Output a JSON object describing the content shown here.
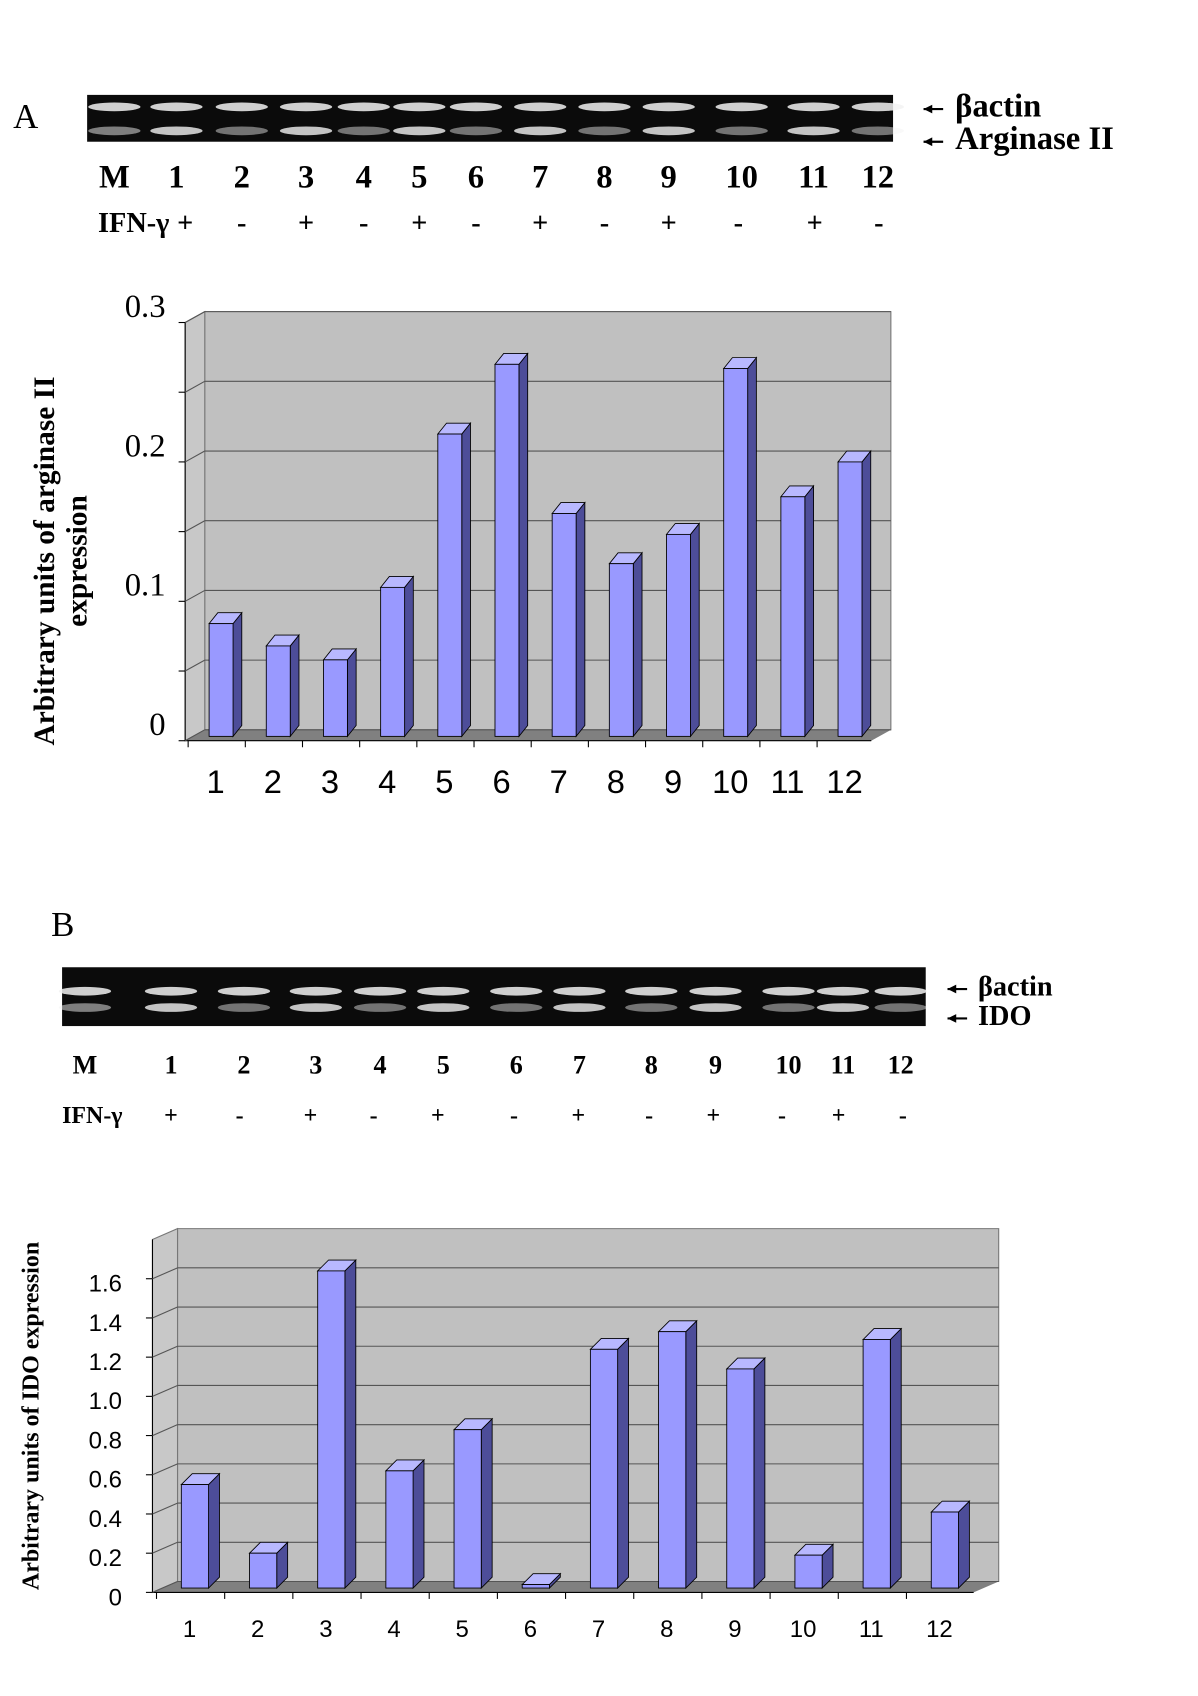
{
  "chart_data": [
    {
      "type": "bar3d",
      "panel": "A",
      "gel": {
        "lanes": [
          "M",
          "1",
          "2",
          "3",
          "4",
          "5",
          "6",
          "7",
          "8",
          "9",
          "10",
          "11",
          "12"
        ],
        "treatment_label": "IFN-γ",
        "treatment": [
          "+",
          "-",
          "+",
          "-",
          "+",
          "-",
          "+",
          "-",
          "+",
          "-",
          "+",
          "-"
        ],
        "bands": [
          "βactin",
          "Arginase II"
        ]
      },
      "ylabel": [
        "Arbitrary units of arginase II",
        "expression"
      ],
      "categories": [
        "1",
        "2",
        "3",
        "4",
        "5",
        "6",
        "7",
        "8",
        "9",
        "10",
        "11",
        "12"
      ],
      "values": [
        0.084,
        0.068,
        0.058,
        0.11,
        0.22,
        0.27,
        0.163,
        0.127,
        0.148,
        0.267,
        0.175,
        0.2
      ],
      "color": "#9999ff",
      "ylim": [
        0,
        0.3
      ],
      "yticks": [
        0,
        0.1,
        0.2,
        0.3
      ],
      "minor_yticks": [
        0.05,
        0.15,
        0.25
      ],
      "grid": true
    },
    {
      "type": "bar3d",
      "panel": "B",
      "gel": {
        "lanes": [
          "M",
          "1",
          "2",
          "3",
          "4",
          "5",
          "6",
          "7",
          "8",
          "9",
          "10",
          "11",
          "12"
        ],
        "treatment_label": "IFN-γ",
        "treatment": [
          "+",
          "-",
          "+",
          "-",
          "+",
          "-",
          "+",
          "-",
          "+",
          "-",
          "+",
          "-"
        ],
        "bands": [
          "βactin",
          "IDO"
        ]
      },
      "ylabel": [
        "Arbitrary units of IDO expression"
      ],
      "categories": [
        "1",
        "2",
        "3",
        "4",
        "5",
        "6",
        "7",
        "8",
        "9",
        "10",
        "11",
        "12"
      ],
      "values": [
        0.55,
        0.2,
        1.64,
        0.62,
        0.83,
        0.04,
        1.24,
        1.33,
        1.14,
        0.19,
        1.29,
        0.41
      ],
      "color": "#9999ff",
      "ylim": [
        0,
        1.8
      ],
      "yticks": [
        0,
        0.2,
        0.4,
        0.6,
        0.8,
        {
          "value": 1,
          "label": "1.0"
        },
        1.2,
        1.4,
        1.6
      ],
      "grid": true
    }
  ]
}
